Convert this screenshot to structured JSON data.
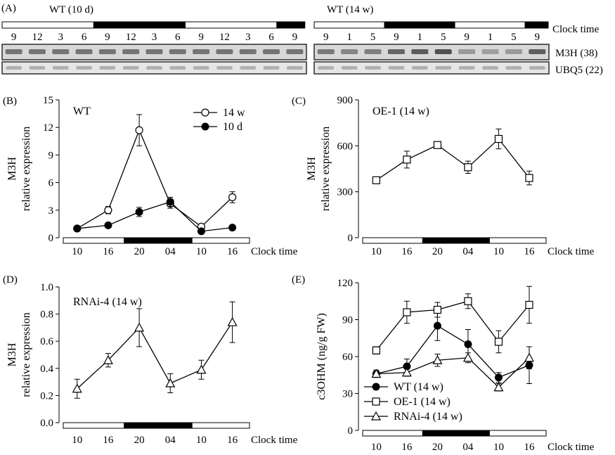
{
  "colors": {
    "ink": "#000000",
    "light_period": "#ffffff",
    "dark_period": "#000000",
    "gel_band": "#4a4a4a",
    "gel_background": "#d8d8d8",
    "gel_frame": "#2b2b2b"
  },
  "panel_a": {
    "tag": "(A)",
    "wt_10d": {
      "title": "WT (10 d)",
      "lanes": [
        "9",
        "12",
        "3",
        "6",
        "9",
        "12",
        "3",
        "6",
        "9",
        "12",
        "3",
        "6",
        "9"
      ],
      "light_dark": [
        "light",
        "dark",
        "light",
        "dark"
      ]
    },
    "wt_14w": {
      "title": "WT (14 w)",
      "lanes": [
        "9",
        "1",
        "5",
        "9",
        "1",
        "5",
        "9",
        "1",
        "5",
        "9"
      ],
      "light_dark": [
        "light",
        "dark",
        "light",
        "dark"
      ],
      "m3h_band_strength": [
        0.55,
        0.45,
        0.5,
        0.75,
        0.85,
        0.95,
        0.25,
        0.2,
        0.25,
        0.8
      ]
    },
    "clock_label": "Clock time",
    "genes": [
      "M3H  (38)",
      "UBQ5 (22)"
    ]
  },
  "chart_data": [
    {
      "panel": "(B)",
      "type": "line",
      "inset_label": "WT",
      "x": [
        "10",
        "16",
        "20",
        "04",
        "10",
        "16"
      ],
      "xlabel": "Clock time",
      "ylabel": [
        "M3H",
        "relative expression"
      ],
      "ylim": [
        0,
        15
      ],
      "yticks": [
        "0",
        "3",
        "6",
        "9",
        "12",
        "15"
      ],
      "legend_position": "top-right",
      "series": [
        {
          "name": "14 w",
          "marker": "circle-open",
          "values": [
            1.0,
            3.0,
            11.7,
            3.7,
            1.2,
            4.4
          ],
          "errors": [
            0.15,
            0.4,
            1.7,
            0.5,
            0.2,
            0.6
          ]
        },
        {
          "name": "10 d",
          "marker": "circle-filled",
          "values": [
            1.0,
            1.35,
            2.8,
            3.9,
            0.7,
            1.1
          ],
          "errors": [
            0.1,
            0.15,
            0.5,
            0.5,
            0.1,
            0.1
          ]
        }
      ]
    },
    {
      "panel": "(C)",
      "type": "line",
      "inset_label": "OE-1 (14 w)",
      "x": [
        "10",
        "16",
        "20",
        "04",
        "10",
        "16"
      ],
      "xlabel": "Clock time",
      "ylabel": [
        "M3H",
        "relative expression"
      ],
      "ylim": [
        0,
        900
      ],
      "yticks": [
        "0",
        "300",
        "600",
        "900"
      ],
      "series": [
        {
          "marker": "square-open",
          "values": [
            375,
            510,
            605,
            460,
            645,
            390
          ],
          "errors": [
            10,
            55,
            20,
            40,
            65,
            45
          ]
        }
      ]
    },
    {
      "panel": "(D)",
      "type": "line",
      "inset_label": "RNAi-4 (14 w)",
      "x": [
        "10",
        "16",
        "20",
        "04",
        "10",
        "16"
      ],
      "xlabel": "Clock time",
      "ylabel": [
        "M3H",
        "relative expression"
      ],
      "ylim": [
        0,
        1.0
      ],
      "yticks": [
        "0.0",
        "0.2",
        "0.4",
        "0.6",
        "0.8",
        "1.0"
      ],
      "series": [
        {
          "marker": "triangle-open",
          "values": [
            0.25,
            0.46,
            0.7,
            0.29,
            0.39,
            0.74
          ],
          "errors": [
            0.07,
            0.05,
            0.14,
            0.07,
            0.07,
            0.15
          ]
        }
      ]
    },
    {
      "panel": "(E)",
      "type": "line",
      "inset_label": "",
      "x": [
        "10",
        "16",
        "20",
        "04",
        "10",
        "16"
      ],
      "xlabel": "Clock time",
      "ylabel": [
        "c3OHM (ng/g FW)"
      ],
      "ylim": [
        0,
        120
      ],
      "yticks": [
        "0",
        "30",
        "60",
        "90",
        "120"
      ],
      "legend_position": "bottom-left",
      "series": [
        {
          "name": "WT (14 w)",
          "marker": "circle-filled",
          "values": [
            46,
            52,
            85,
            70,
            43,
            53
          ],
          "errors": [
            3,
            6,
            12,
            12,
            4,
            15
          ]
        },
        {
          "name": "OE-1 (14 w)",
          "marker": "square-open",
          "values": [
            65,
            96,
            98,
            105,
            72,
            102
          ],
          "errors": [
            3,
            9,
            6,
            6,
            9,
            15
          ]
        },
        {
          "name": "RNAi-4 (14 w)",
          "marker": "triangle-open",
          "values": [
            46,
            47,
            57,
            59,
            35,
            59
          ],
          "errors": [
            2,
            3,
            5,
            4,
            3,
            9
          ]
        }
      ]
    }
  ]
}
